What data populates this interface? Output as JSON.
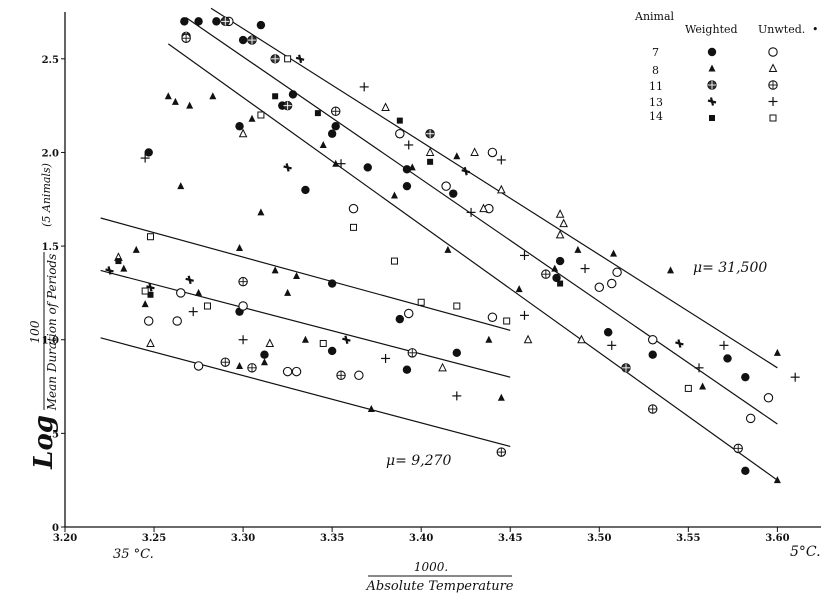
{
  "chart_data": {
    "type": "scatter",
    "title": "",
    "xlim": [
      3.2,
      3.62
    ],
    "ylim": [
      0,
      2.75
    ],
    "x_ticks": [
      {
        "v": 3.2,
        "t": "3.20"
      },
      {
        "v": 3.25,
        "t": "3.25"
      },
      {
        "v": 3.3,
        "t": "3.30"
      },
      {
        "v": 3.35,
        "t": "3.35"
      },
      {
        "v": 3.4,
        "t": "3.40"
      },
      {
        "v": 3.45,
        "t": "3.45"
      },
      {
        "v": 3.5,
        "t": "3.50"
      },
      {
        "v": 3.55,
        "t": "3.55"
      },
      {
        "v": 3.6,
        "t": "3.60"
      }
    ],
    "y_ticks": [
      {
        "v": 0,
        "t": "0"
      },
      {
        "v": 0.5,
        "t": ".5"
      },
      {
        "v": 1.0,
        "t": "1.0"
      },
      {
        "v": 1.5,
        "t": "1.5"
      },
      {
        "v": 2.0,
        "t": "2.0"
      },
      {
        "v": 2.5,
        "t": "2.5"
      }
    ],
    "x_extra_labels": [
      {
        "v": 3.245,
        "t": "35 °C."
      },
      {
        "v": 3.605,
        "t": "5°C."
      }
    ],
    "xlabel": {
      "numerator": "1000.",
      "denominator": "Absolute Temperature"
    },
    "ylabel": {
      "prefix": "Log",
      "numerator": "100",
      "denominator": "Mean Duration of Periods",
      "suffix": "(5 Animals)"
    },
    "annotations": [
      {
        "text": "μ= 31,500",
        "x": 3.545,
        "y": 1.5
      },
      {
        "text": "μ= 9,270",
        "x": 3.375,
        "y": 0.58
      }
    ],
    "legend": {
      "position": "top-right",
      "headers": [
        "Animal",
        "Weighted",
        "Unwted."
      ],
      "rows": [
        {
          "animal": "7",
          "weighted_marker": "filled-circle",
          "unweighted_marker": "open-circle"
        },
        {
          "animal": "8",
          "weighted_marker": "filled-triangle",
          "unweighted_marker": "open-triangle"
        },
        {
          "animal": "11",
          "weighted_marker": "filled-crossed-circle",
          "unweighted_marker": "open-crossed-circle"
        },
        {
          "animal": "13",
          "weighted_marker": "filled-cross",
          "unweighted_marker": "plus"
        },
        {
          "animal": "14",
          "weighted_marker": "filled-square",
          "unweighted_marker": "open-square"
        }
      ]
    },
    "lines": [
      {
        "name": "upper-1",
        "x": [
          3.282,
          3.6
        ],
        "y": [
          2.77,
          0.85
        ]
      },
      {
        "name": "upper-2",
        "x": [
          3.268,
          3.6
        ],
        "y": [
          2.72,
          0.55
        ]
      },
      {
        "name": "upper-3",
        "x": [
          3.258,
          3.6
        ],
        "y": [
          2.58,
          0.25
        ]
      },
      {
        "name": "lower-1",
        "x": [
          3.22,
          3.45
        ],
        "y": [
          1.65,
          1.05
        ]
      },
      {
        "name": "lower-2",
        "x": [
          3.22,
          3.45
        ],
        "y": [
          1.37,
          0.8
        ]
      },
      {
        "name": "lower-3",
        "x": [
          3.22,
          3.45
        ],
        "y": [
          1.01,
          0.43
        ]
      }
    ],
    "series": [
      {
        "marker": "filled-circle",
        "points": [
          [
            3.247,
            2.0
          ],
          [
            3.267,
            2.7
          ],
          [
            3.275,
            2.7
          ],
          [
            3.285,
            2.7
          ],
          [
            3.298,
            2.14
          ],
          [
            3.3,
            2.6
          ],
          [
            3.31,
            2.68
          ],
          [
            3.322,
            2.25
          ],
          [
            3.328,
            2.31
          ],
          [
            3.335,
            1.8
          ],
          [
            3.35,
            2.1
          ],
          [
            3.352,
            2.14
          ],
          [
            3.37,
            1.92
          ],
          [
            3.388,
            1.11
          ],
          [
            3.392,
            1.82
          ],
          [
            3.392,
            1.91
          ],
          [
            3.418,
            1.78
          ],
          [
            3.42,
            0.93
          ],
          [
            3.392,
            0.84
          ],
          [
            3.35,
            0.94
          ],
          [
            3.35,
            1.3
          ],
          [
            3.298,
            1.15
          ],
          [
            3.312,
            0.92
          ],
          [
            3.478,
            1.42
          ],
          [
            3.476,
            1.33
          ],
          [
            3.505,
            1.04
          ],
          [
            3.53,
            0.92
          ],
          [
            3.572,
            0.9
          ],
          [
            3.582,
            0.8
          ],
          [
            3.582,
            0.3
          ]
        ]
      },
      {
        "marker": "open-circle",
        "points": [
          [
            3.247,
            1.1
          ],
          [
            3.263,
            1.1
          ],
          [
            3.265,
            1.25
          ],
          [
            3.275,
            0.86
          ],
          [
            3.292,
            2.7
          ],
          [
            3.3,
            1.18
          ],
          [
            3.325,
            0.83
          ],
          [
            3.33,
            0.83
          ],
          [
            3.362,
            1.7
          ],
          [
            3.365,
            0.81
          ],
          [
            3.388,
            2.1
          ],
          [
            3.393,
            1.14
          ],
          [
            3.414,
            1.82
          ],
          [
            3.438,
            1.7
          ],
          [
            3.44,
            2.0
          ],
          [
            3.5,
            1.28
          ],
          [
            3.507,
            1.3
          ],
          [
            3.51,
            1.36
          ],
          [
            3.53,
            1.0
          ],
          [
            3.585,
            0.58
          ],
          [
            3.595,
            0.69
          ],
          [
            3.44,
            1.12
          ]
        ]
      },
      {
        "marker": "filled-triangle",
        "points": [
          [
            3.233,
            1.38
          ],
          [
            3.24,
            1.48
          ],
          [
            3.245,
            1.19
          ],
          [
            3.258,
            2.3
          ],
          [
            3.262,
            2.27
          ],
          [
            3.265,
            1.82
          ],
          [
            3.27,
            2.25
          ],
          [
            3.275,
            1.25
          ],
          [
            3.283,
            2.3
          ],
          [
            3.298,
            1.49
          ],
          [
            3.305,
            2.18
          ],
          [
            3.31,
            1.68
          ],
          [
            3.318,
            1.37
          ],
          [
            3.325,
            1.25
          ],
          [
            3.33,
            1.34
          ],
          [
            3.335,
            1.0
          ],
          [
            3.345,
            2.04
          ],
          [
            3.352,
            1.94
          ],
          [
            3.372,
            0.63
          ],
          [
            3.385,
            1.77
          ],
          [
            3.395,
            1.92
          ],
          [
            3.415,
            1.48
          ],
          [
            3.42,
            1.98
          ],
          [
            3.445,
            0.69
          ],
          [
            3.438,
            1.0
          ],
          [
            3.455,
            1.27
          ],
          [
            3.475,
            1.38
          ],
          [
            3.488,
            1.48
          ],
          [
            3.508,
            1.46
          ],
          [
            3.54,
            1.37
          ],
          [
            3.558,
            0.75
          ],
          [
            3.6,
            0.93
          ],
          [
            3.6,
            0.25
          ],
          [
            3.298,
            0.86
          ],
          [
            3.312,
            0.88
          ]
        ]
      },
      {
        "marker": "open-triangle",
        "points": [
          [
            3.23,
            1.44
          ],
          [
            3.248,
            0.98
          ],
          [
            3.3,
            2.1
          ],
          [
            3.315,
            0.98
          ],
          [
            3.38,
            2.24
          ],
          [
            3.405,
            2.0
          ],
          [
            3.43,
            2.0
          ],
          [
            3.445,
            1.8
          ],
          [
            3.46,
            1.0
          ],
          [
            3.478,
            1.67
          ],
          [
            3.48,
            1.62
          ],
          [
            3.49,
            1.0
          ],
          [
            3.478,
            1.56
          ],
          [
            3.435,
            1.7
          ],
          [
            3.412,
            0.85
          ]
        ]
      },
      {
        "marker": "filled-crossed-circle",
        "points": [
          [
            3.268,
            2.62
          ],
          [
            3.29,
            2.7
          ],
          [
            3.305,
            2.6
          ],
          [
            3.318,
            2.5
          ],
          [
            3.325,
            2.25
          ],
          [
            3.405,
            2.1
          ],
          [
            3.515,
            0.85
          ]
        ]
      },
      {
        "marker": "open-crossed-circle",
        "points": [
          [
            3.268,
            2.61
          ],
          [
            3.29,
            0.88
          ],
          [
            3.3,
            1.31
          ],
          [
            3.305,
            0.85
          ],
          [
            3.352,
            2.22
          ],
          [
            3.355,
            0.81
          ],
          [
            3.395,
            0.93
          ],
          [
            3.445,
            0.4
          ],
          [
            3.53,
            0.63
          ],
          [
            3.578,
            0.42
          ],
          [
            3.47,
            1.35
          ]
        ]
      },
      {
        "marker": "filled-cross",
        "points": [
          [
            3.225,
            1.37
          ],
          [
            3.248,
            1.28
          ],
          [
            3.27,
            1.32
          ],
          [
            3.325,
            1.92
          ],
          [
            3.332,
            2.5
          ],
          [
            3.358,
            1.0
          ],
          [
            3.425,
            1.9
          ],
          [
            3.505,
            1.04
          ],
          [
            3.545,
            0.98
          ]
        ]
      },
      {
        "marker": "plus",
        "points": [
          [
            3.245,
            1.97
          ],
          [
            3.272,
            1.15
          ],
          [
            3.3,
            1.0
          ],
          [
            3.355,
            1.94
          ],
          [
            3.368,
            2.35
          ],
          [
            3.38,
            0.9
          ],
          [
            3.393,
            2.04
          ],
          [
            3.42,
            0.7
          ],
          [
            3.428,
            1.68
          ],
          [
            3.445,
            1.96
          ],
          [
            3.458,
            1.45
          ],
          [
            3.458,
            1.13
          ],
          [
            3.492,
            1.38
          ],
          [
            3.507,
            0.97
          ],
          [
            3.556,
            0.85
          ],
          [
            3.57,
            0.97
          ],
          [
            3.61,
            0.8
          ]
        ]
      },
      {
        "marker": "filled-square",
        "points": [
          [
            3.23,
            1.42
          ],
          [
            3.248,
            1.24
          ],
          [
            3.318,
            2.3
          ],
          [
            3.342,
            2.21
          ],
          [
            3.388,
            2.17
          ],
          [
            3.405,
            1.95
          ],
          [
            3.478,
            1.3
          ]
        ]
      },
      {
        "marker": "open-square",
        "points": [
          [
            3.248,
            1.55
          ],
          [
            3.245,
            1.26
          ],
          [
            3.31,
            2.2
          ],
          [
            3.325,
            2.5
          ],
          [
            3.345,
            0.98
          ],
          [
            3.362,
            1.6
          ],
          [
            3.385,
            1.42
          ],
          [
            3.4,
            1.2
          ],
          [
            3.42,
            1.18
          ],
          [
            3.448,
            1.1
          ],
          [
            3.55,
            0.74
          ],
          [
            3.28,
            1.18
          ]
        ]
      }
    ]
  }
}
